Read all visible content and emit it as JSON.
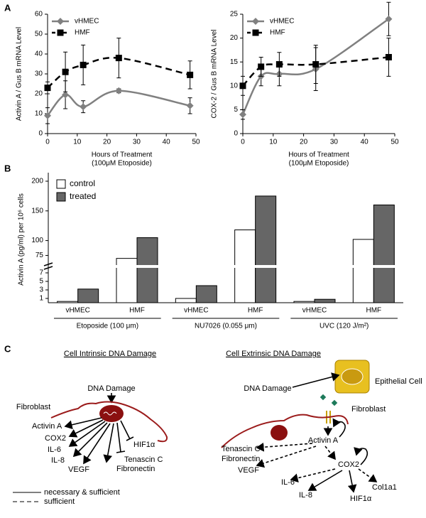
{
  "panel_labels": [
    "A",
    "B",
    "C"
  ],
  "chart_data": [
    {
      "type": "line",
      "ylabel": "Activin A / Gus B mRNA Level",
      "xlabel": [
        "Hours of Treatment",
        "(100μM Etoposide)"
      ],
      "x": [
        0,
        6,
        12,
        24,
        48
      ],
      "xlim": [
        0,
        50
      ],
      "xticks": [
        0,
        10,
        20,
        30,
        40,
        50
      ],
      "ylim": [
        0,
        60
      ],
      "yticks": [
        0,
        10,
        20,
        30,
        40,
        50,
        60
      ],
      "legend": "upper left",
      "series": [
        {
          "name": "vHMEC",
          "color": "#808080",
          "line_style": "solid",
          "marker": "diamond",
          "values": [
            9,
            19.5,
            13.5,
            21.5,
            14
          ],
          "errors": [
            4,
            7,
            3,
            1,
            4
          ]
        },
        {
          "name": "HMF",
          "color": "#000000",
          "line_style": "dashed",
          "marker": "square",
          "values": [
            23,
            31,
            34.5,
            38,
            29.5
          ],
          "errors": [
            3,
            10,
            10,
            10,
            7
          ]
        }
      ]
    },
    {
      "type": "line",
      "ylabel": "COX-2 / Gus B mRNA Level",
      "xlabel": [
        "Hours of Treatment",
        "(100μM Etoposide)"
      ],
      "x": [
        0,
        6,
        12,
        24,
        48
      ],
      "xlim": [
        0,
        50
      ],
      "xticks": [
        0,
        10,
        20,
        30,
        40,
        50
      ],
      "ylim": [
        0,
        25
      ],
      "yticks": [
        0,
        5,
        10,
        15,
        20,
        25
      ],
      "legend": "upper left",
      "series": [
        {
          "name": "vHMEC",
          "color": "#808080",
          "line_style": "solid",
          "marker": "diamond",
          "values": [
            4,
            12,
            12.5,
            13.5,
            24
          ],
          "errors": [
            1,
            2,
            2.5,
            4.5,
            3.5
          ]
        },
        {
          "name": "HMF",
          "color": "#000000",
          "line_style": "dashed",
          "marker": "square",
          "values": [
            10,
            14,
            14.5,
            14.5,
            16
          ],
          "errors": [
            2,
            2,
            2.5,
            4,
            4
          ]
        }
      ]
    },
    {
      "type": "bar",
      "ylabel": "Activin A (pg/ml) per 10⁶ cells",
      "categories": [
        "vHMEC",
        "HMF",
        "vHMEC",
        "HMF",
        "vHMEC",
        "HMF"
      ],
      "groups": [
        "Etoposide (100 μm)",
        "NU7026 (0.055 μm)",
        "UVC (120 J/m²)"
      ],
      "ylim": [
        0,
        200
      ],
      "y_break": [
        8,
        60
      ],
      "yticks": [
        1,
        3,
        5,
        7,
        75,
        100,
        150,
        200
      ],
      "legend": "upper left",
      "series": [
        {
          "name": "control",
          "color": "#ffffff",
          "values": [
            0.3,
            70,
            1,
            118,
            0.3,
            102
          ]
        },
        {
          "name": "treated",
          "color": "#666666",
          "values": [
            3.2,
            105,
            4,
            175,
            0.8,
            160
          ]
        }
      ]
    }
  ],
  "diagram": {
    "left": {
      "title": "Cell Intrinsic DNA Damage",
      "trigger": "DNA Damage",
      "cell": "Fibroblast",
      "targets": [
        "Activin A",
        "COX2",
        "IL-6",
        "IL-8",
        "VEGF",
        "HIF1α",
        "Tenascin C",
        "Fibronectin"
      ]
    },
    "right": {
      "title": "Cell Extrinsic DNA Damage",
      "trigger": "DNA Damage",
      "source_cell": "Epithelial Cell",
      "cell": "Fibroblast",
      "targets": [
        "Activin A",
        "Tenascin C",
        "Fibronectin",
        "COX2",
        "VEGF",
        "IL-6",
        "Col1a1",
        "IL-8",
        "HIF1α"
      ]
    },
    "legend": [
      "necessary & sufficient",
      "sufficient"
    ]
  }
}
